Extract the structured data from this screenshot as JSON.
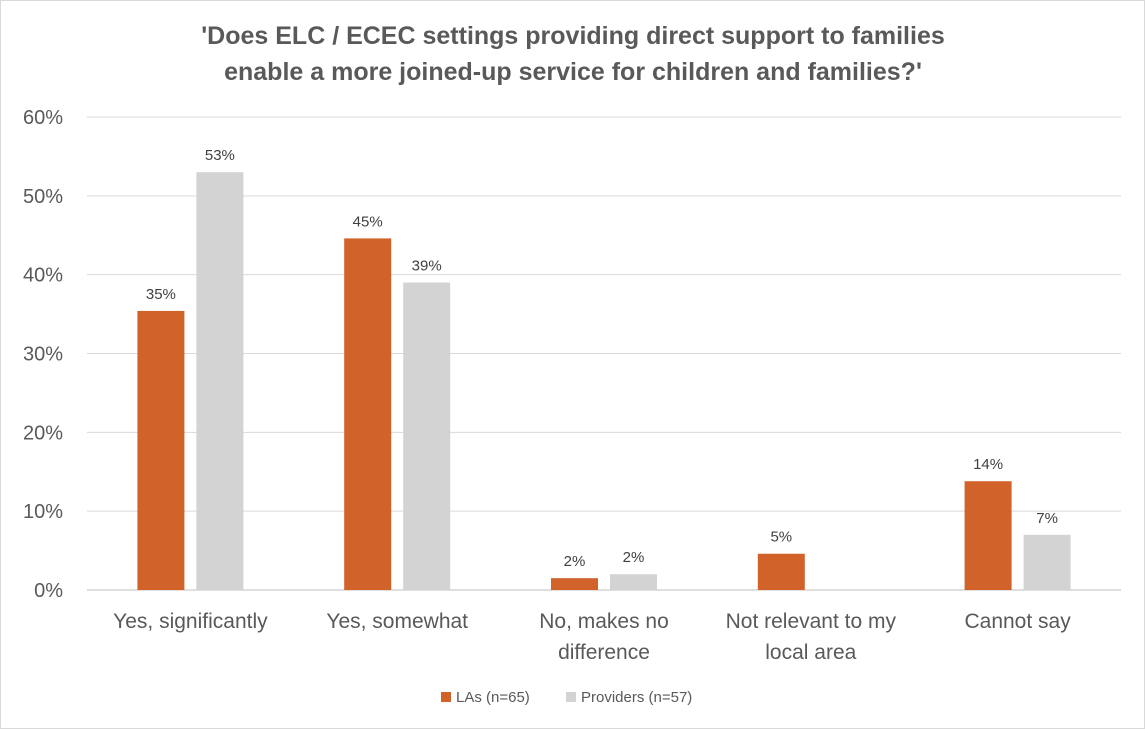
{
  "chart_data": {
    "type": "bar",
    "title_lines": [
      "'Does ELC / ECEC settings providing direct support to families",
      "enable a more joined-up service for children and families?'"
    ],
    "categories": [
      [
        "Yes, significantly"
      ],
      [
        "Yes, somewhat"
      ],
      [
        "No, makes no",
        "difference"
      ],
      [
        "Not relevant to my",
        "local area"
      ],
      [
        "Cannot say"
      ]
    ],
    "series": [
      {
        "name": "LAs (n=65)",
        "color": "#d0622a",
        "values": [
          35.4,
          44.6,
          1.5,
          4.6,
          13.8
        ],
        "labels": [
          "35%",
          "45%",
          "2%",
          "5%",
          "14%"
        ]
      },
      {
        "name": "Providers (n=57)",
        "color": "#d3d3d3",
        "values": [
          53,
          39,
          2,
          0,
          7
        ],
        "labels": [
          "53%",
          "39%",
          "2%",
          null,
          "7%"
        ]
      }
    ],
    "ylim": [
      0,
      60
    ],
    "yticks": [
      "0%",
      "10%",
      "20%",
      "30%",
      "40%",
      "50%",
      "60%"
    ],
    "ytick_values": [
      0,
      10,
      20,
      30,
      40,
      50,
      60
    ],
    "grid": true,
    "legend_position": "bottom"
  }
}
